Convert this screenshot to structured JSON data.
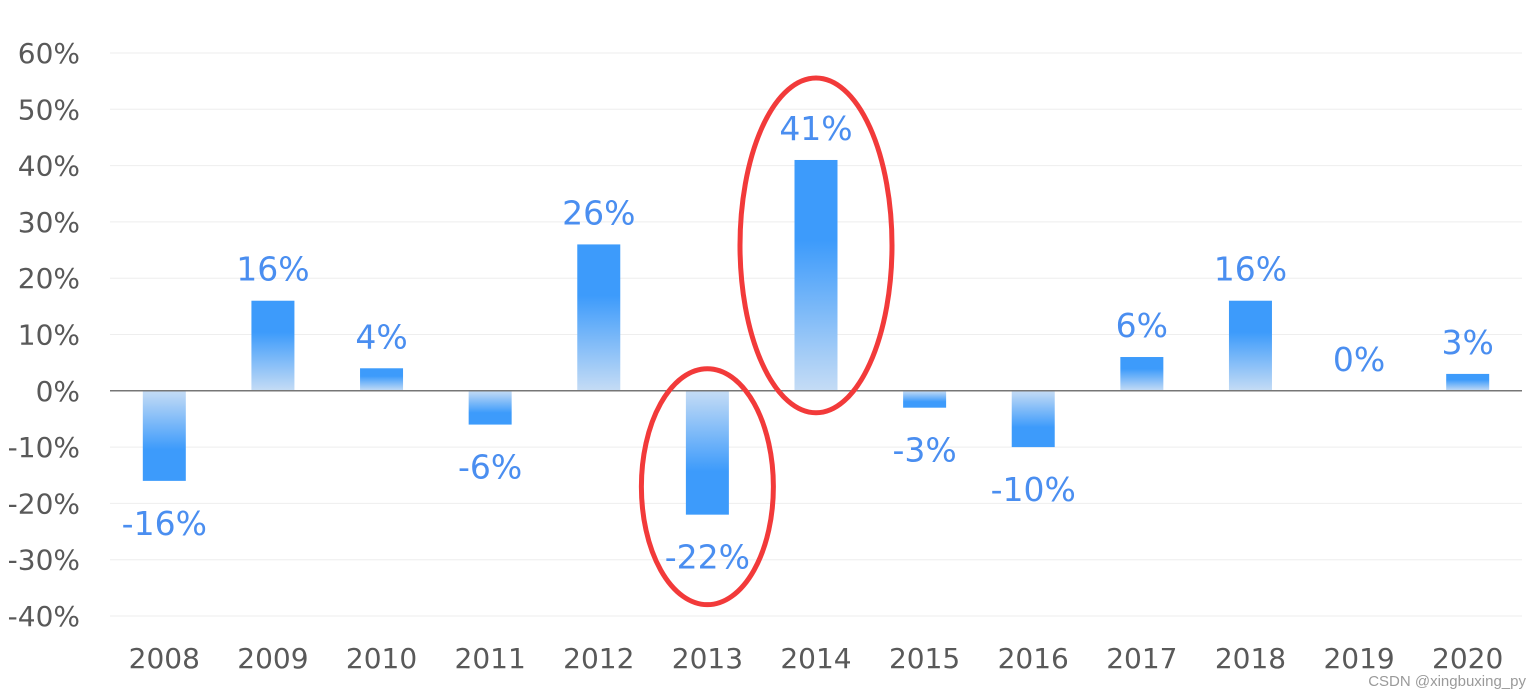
{
  "chart_data": {
    "type": "bar",
    "categories": [
      "2008",
      "2009",
      "2010",
      "2011",
      "2012",
      "2013",
      "2014",
      "2015",
      "2016",
      "2017",
      "2018",
      "2019",
      "2020"
    ],
    "values": [
      -16,
      16,
      4,
      -6,
      26,
      -22,
      41,
      -3,
      -10,
      6,
      16,
      0,
      3
    ],
    "data_labels": [
      "-16%",
      "16%",
      "4%",
      "-6%",
      "26%",
      "-22%",
      "41%",
      "-3%",
      "-10%",
      "6%",
      "16%",
      "0%",
      "3%"
    ],
    "ylim": [
      -40,
      60
    ],
    "yticks": [
      -40,
      -30,
      -20,
      -10,
      0,
      10,
      20,
      30,
      40,
      50,
      60
    ],
    "ytick_labels": [
      "-40%",
      "-30%",
      "-20%",
      "-10%",
      "0%",
      "10%",
      "20%",
      "30%",
      "40%",
      "50%",
      "60%"
    ],
    "grid": true,
    "bar_color": "#3d9bfb",
    "bar_fade_color": "#c5dcf5",
    "label_color": "#4a8ef0",
    "highlighted_categories": [
      "2013",
      "2014"
    ],
    "highlight_color": "#f23a3a",
    "title": "",
    "xlabel": "",
    "ylabel": ""
  },
  "watermark": "CSDN @xingbuxing_py"
}
